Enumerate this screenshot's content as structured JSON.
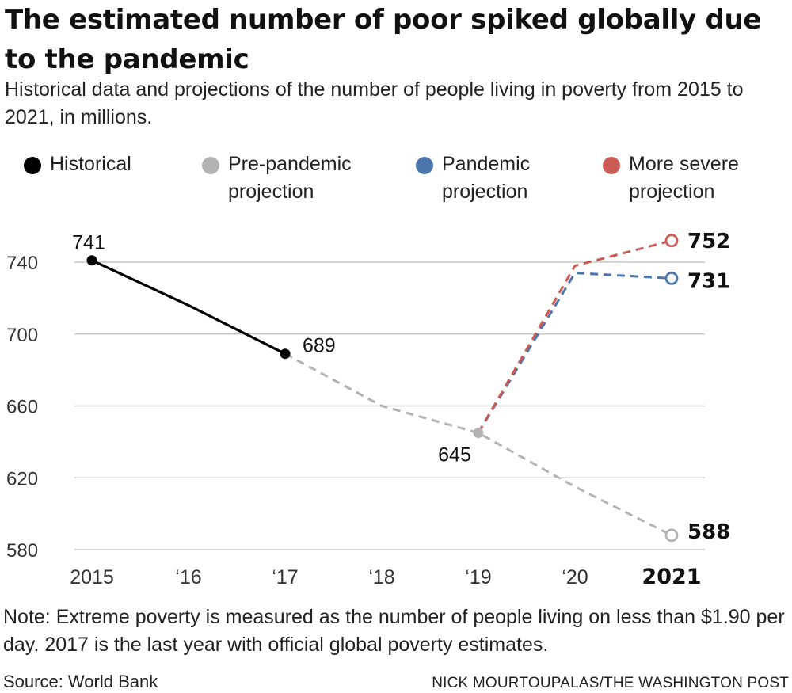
{
  "header": {
    "title": "The estimated number of poor spiked globally due to the pandemic",
    "subtitle": "Historical data and projections of the number of people living in poverty from 2015 to 2021, in millions."
  },
  "legend": [
    {
      "label": "Historical",
      "color": "#000000"
    },
    {
      "label": "Pre-pandemic\nprojection",
      "color": "#b3b3b3"
    },
    {
      "label": "Pandemic\nprojection",
      "color": "#4c77ad"
    },
    {
      "label": "More severe\nprojection",
      "color": "#cc5a55"
    }
  ],
  "chart_data": {
    "type": "line",
    "x_categories": [
      "2015",
      "‘16",
      "‘17",
      "‘18",
      "‘19",
      "‘20",
      "2021"
    ],
    "x_bold": [
      false,
      false,
      false,
      false,
      false,
      false,
      true
    ],
    "y_ticks": [
      580,
      620,
      660,
      700,
      740
    ],
    "ylim": [
      575,
      760
    ],
    "grid": true,
    "series": [
      {
        "name": "Historical",
        "color": "#000000",
        "dashed": false,
        "x": [
          2015,
          2016,
          2017
        ],
        "y": [
          741,
          716,
          689
        ],
        "markers": [
          {
            "x": 2015,
            "style": "filled"
          },
          {
            "x": 2017,
            "style": "filled"
          }
        ]
      },
      {
        "name": "Pre-pandemic projection",
        "color": "#b3b3b3",
        "dashed": true,
        "x": [
          2017,
          2018,
          2019,
          2020,
          2021
        ],
        "y": [
          689,
          660,
          645,
          615,
          588
        ],
        "markers": [
          {
            "x": 2019,
            "style": "filled"
          },
          {
            "x": 2021,
            "style": "open"
          }
        ]
      },
      {
        "name": "Pandemic projection",
        "color": "#4c77ad",
        "dashed": true,
        "x": [
          2019,
          2020,
          2021
        ],
        "y": [
          645,
          734,
          731
        ],
        "markers": [
          {
            "x": 2021,
            "style": "open"
          }
        ]
      },
      {
        "name": "More severe projection",
        "color": "#cc5a55",
        "dashed": true,
        "x": [
          2019,
          2020,
          2021
        ],
        "y": [
          645,
          738,
          752
        ],
        "markers": [
          {
            "x": 2021,
            "style": "open"
          }
        ]
      }
    ],
    "annotations": [
      {
        "text": "741",
        "x": 2015,
        "y": 741,
        "bold": false
      },
      {
        "text": "689",
        "x": 2017,
        "y": 689,
        "bold": false
      },
      {
        "text": "645",
        "x": 2019,
        "y": 645,
        "bold": false
      },
      {
        "text": "752",
        "x": 2021,
        "y": 752,
        "bold": true
      },
      {
        "text": "731",
        "x": 2021,
        "y": 731,
        "bold": true
      },
      {
        "text": "588",
        "x": 2021,
        "y": 588,
        "bold": true
      }
    ]
  },
  "footer": {
    "note": "Note: Extreme poverty is measured as the number of people living on less than $1.90 per day. 2017 is the last year with official global poverty estimates.",
    "source": "Source: World Bank",
    "credit": "NICK MOURTOUPALAS/THE WASHINGTON POST"
  }
}
